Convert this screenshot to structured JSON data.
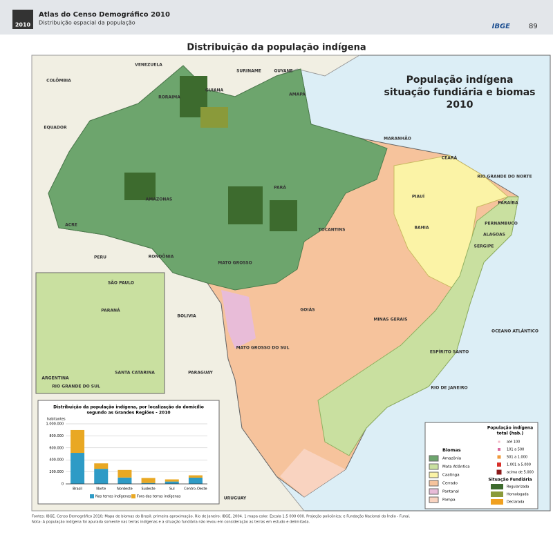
{
  "header": {
    "series_title": "Atlas do Censo Demográfico 2010",
    "subtitle": "Distribuição espacial da população",
    "publisher": "IBGE",
    "page": "89",
    "logo": "2010"
  },
  "title": "Distribuição da população indígena",
  "map": {
    "title_lines": [
      "População indígena",
      "situação fundiária e biomas",
      "2010"
    ],
    "labels": [
      "VENEZUELA",
      "COLÔMBIA",
      "SURINAME",
      "GUYANE",
      "GUIANA",
      "RORAIMA",
      "AMAPÁ",
      "AMAZONAS",
      "PARÁ",
      "ACRE",
      "RONDÔNIA",
      "MATO GROSSO",
      "MARANHÃO",
      "CEARÁ",
      "PIAUÍ",
      "RIO GRANDE DO NORTE",
      "PARAÍBA",
      "PERNAMBUCO",
      "ALAGOAS",
      "SERGIPE",
      "BAHIA",
      "TOCANTINS",
      "GOIÁS",
      "MINAS GERAIS",
      "ESPÍRITO SANTO",
      "RIO DE JANEIRO",
      "SÃO PAULO",
      "PARANÁ",
      "SANTA CATARINA",
      "RIO GRANDE DO SUL",
      "MATO GROSSO DO SUL",
      "PERU",
      "BOLIVIA",
      "PARAGUAY",
      "ARGENTINA",
      "URUGUAY",
      "OCEANO ATLÂNTICO",
      "EQUADOR"
    ]
  },
  "legend": {
    "biomes": {
      "title": "Biomas",
      "items": [
        {
          "name": "Amazônia",
          "color": "#6da56d"
        },
        {
          "name": "Mata Atlântica",
          "color": "#c9e0a0"
        },
        {
          "name": "Caatinga",
          "color": "#fbf3a6"
        },
        {
          "name": "Cerrado",
          "color": "#f6c39c"
        },
        {
          "name": "Pantanal",
          "color": "#e8bcd8"
        },
        {
          "name": "Pampa",
          "color": "#f9d3c0"
        }
      ]
    },
    "population": {
      "title_lines": [
        "População indígena",
        "total (hab.)"
      ],
      "items": [
        "até 100",
        "101 a 500",
        "501 a 1.000",
        "1.001 a 5.000",
        "acima de 5.000"
      ]
    },
    "land": {
      "title": "Situação Fundiária",
      "items": [
        {
          "name": "Regularizada",
          "color": "#3d6b2e"
        },
        {
          "name": "Homologada",
          "color": "#8a9a3a"
        },
        {
          "name": "Declarada",
          "color": "#f0a020"
        }
      ]
    }
  },
  "chart_data": {
    "type": "stacked_bar",
    "title_lines": [
      "Distribuição da população indígena, por localização do domicílio",
      "segundo as Grandes Regiões - 2010"
    ],
    "y_label": "habitantes",
    "categories": [
      "Brasil",
      "Norte",
      "Nordeste",
      "Sudeste",
      "Sul",
      "Centro-Oeste"
    ],
    "series": [
      {
        "name": "Nas terras indígenas",
        "color": "#2e9bc6",
        "values": [
          517000,
          251000,
          106000,
          15000,
          39000,
          104000
        ]
      },
      {
        "name": "Fora das terras indígenas",
        "color": "#e9a823",
        "values": [
          380000,
          91000,
          126000,
          84000,
          36000,
          39000
        ]
      }
    ],
    "ylim": [
      0,
      1000000
    ],
    "yticks": [
      0,
      {
        "value": 200000,
        "label": "200.000"
      },
      {
        "value": 400000,
        "label": "400.000"
      },
      {
        "value": 600000,
        "label": "600.000"
      },
      {
        "value": 800000,
        "label": "800.000"
      },
      {
        "value": 1000000,
        "label": "1.000.000"
      }
    ],
    "grid": true
  },
  "footer": {
    "sources": "Fontes: IBGE, Censo Demográfico 2010; Mapa de biomas do Brasil: primeira aproximação. Rio de Janeiro: IBGE, 2004. 1 mapa color. Escala 1:5 000 000. Projeção policônica; e Fundação Nacional do Índio - Funai.",
    "note": "Nota: A população indígena foi apurada somente nas terras indígenas e a situação fundiária não levou em consideração as terras em estudo e delimitada."
  }
}
